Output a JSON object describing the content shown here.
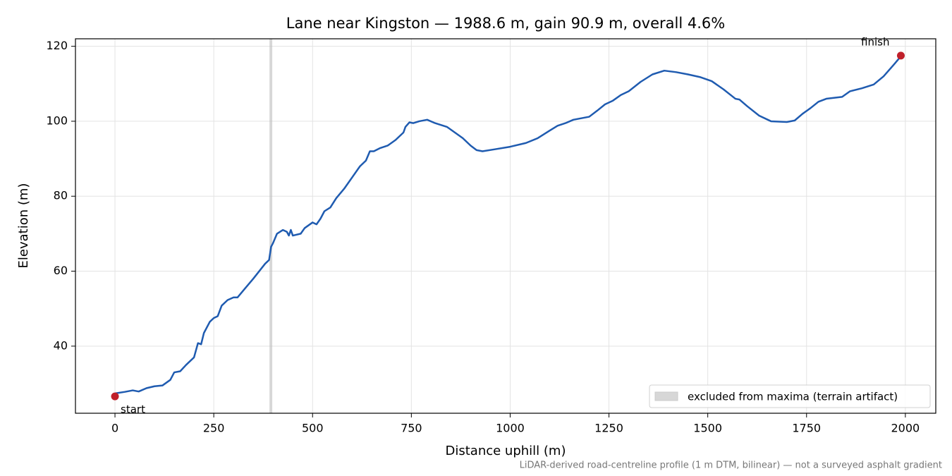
{
  "chart_data": {
    "type": "line",
    "title": "Lane near Kingston — 1988.6 m, gain 90.9 m, overall 4.6%",
    "xlabel": "Distance uphill (m)",
    "ylabel": "Elevation (m)",
    "footnote": "LiDAR-derived road-centreline profile (1 m DTM, bilinear) — not a surveyed asphalt gradient",
    "xlim": [
      -100,
      2077
    ],
    "ylim": [
      22.1,
      122.0
    ],
    "xticks": [
      0,
      250,
      500,
      750,
      1000,
      1250,
      1500,
      1750,
      2000
    ],
    "yticks": [
      40,
      60,
      80,
      100,
      120
    ],
    "grid": true,
    "legend": "lower right",
    "x": [
      0,
      25,
      45,
      60,
      80,
      100,
      120,
      140,
      150,
      165,
      180,
      200,
      210,
      218,
      225,
      240,
      250,
      260,
      270,
      285,
      300,
      310,
      330,
      350,
      365,
      380,
      390,
      395,
      400,
      410,
      425,
      435,
      440,
      445,
      450,
      470,
      480,
      500,
      510,
      520,
      530,
      545,
      560,
      580,
      600,
      620,
      635,
      645,
      655,
      670,
      690,
      710,
      730,
      735,
      745,
      755,
      770,
      790,
      810,
      840,
      860,
      880,
      900,
      915,
      930,
      960,
      1000,
      1040,
      1070,
      1100,
      1120,
      1140,
      1160,
      1200,
      1220,
      1240,
      1260,
      1280,
      1300,
      1330,
      1360,
      1390,
      1420,
      1450,
      1480,
      1510,
      1540,
      1570,
      1580,
      1600,
      1630,
      1660,
      1700,
      1720,
      1740,
      1760,
      1780,
      1800,
      1840,
      1860,
      1890,
      1920,
      1945,
      1970,
      1988.6
    ],
    "series": [
      {
        "color": "#1f5bb0",
        "values": [
          27.4,
          27.8,
          28.2,
          27.9,
          28.8,
          29.3,
          29.5,
          31,
          33,
          33.3,
          35,
          37,
          40.8,
          40.5,
          43.5,
          46.5,
          47.5,
          48,
          50.8,
          52.3,
          53,
          53,
          55.5,
          58,
          60,
          62,
          63,
          66.5,
          67.5,
          70,
          71,
          70.5,
          69.5,
          71,
          69.5,
          70,
          71.5,
          73,
          72.5,
          74,
          76,
          77,
          79.5,
          82,
          85,
          88,
          89.5,
          92,
          92,
          92.8,
          93.5,
          95,
          97,
          98.5,
          99.7,
          99.5,
          100,
          100.4,
          99.5,
          98.5,
          97,
          95.5,
          93.5,
          92.3,
          92,
          92.5,
          93.2,
          94.2,
          95.5,
          97.5,
          98.8,
          99.5,
          100.4,
          101.2,
          102.8,
          104.5,
          105.5,
          107,
          108,
          110.5,
          112.5,
          113.5,
          113.1,
          112.5,
          111.8,
          110.7,
          108.5,
          106,
          105.8,
          104,
          101.5,
          100,
          99.8,
          100.2,
          102,
          103.5,
          105.2,
          106,
          106.5,
          108,
          108.8,
          109.8,
          112,
          115,
          117.3
        ]
      }
    ],
    "endpoints": {
      "x": [
        0,
        1988.6
      ],
      "values": [
        26.6,
        117.5
      ],
      "labels": [
        "start",
        "finish"
      ],
      "color": "#c0202a"
    },
    "excluded": {
      "xrange": [
        391,
        398
      ],
      "label": "excluded from maxima (terrain artifact)",
      "color": "#bdbdbd"
    }
  }
}
